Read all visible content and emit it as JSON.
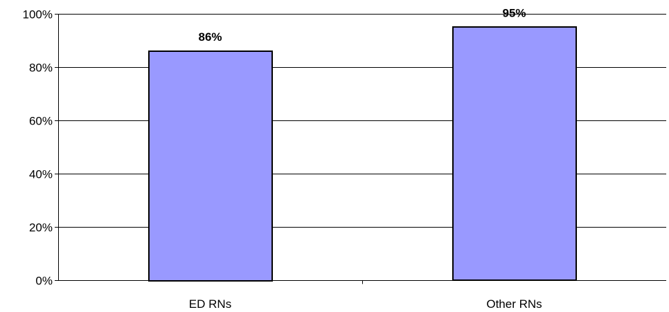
{
  "chart_data": {
    "type": "bar",
    "title": "",
    "xlabel": "",
    "ylabel": "",
    "categories": [
      "ED RNs",
      "Other RNs"
    ],
    "values": [
      86,
      95
    ],
    "data_labels": [
      "86%",
      "95%"
    ],
    "ylim": [
      0,
      100
    ],
    "yticks": [
      0,
      20,
      40,
      60,
      80,
      100
    ],
    "ytick_labels": [
      "0%",
      "20%",
      "40%",
      "60%",
      "80%",
      "100%"
    ],
    "grid": true,
    "legend": "none",
    "colors": {
      "bar_fill": "#9999FF",
      "bar_stroke": "#000000",
      "grid": "#000000"
    }
  }
}
